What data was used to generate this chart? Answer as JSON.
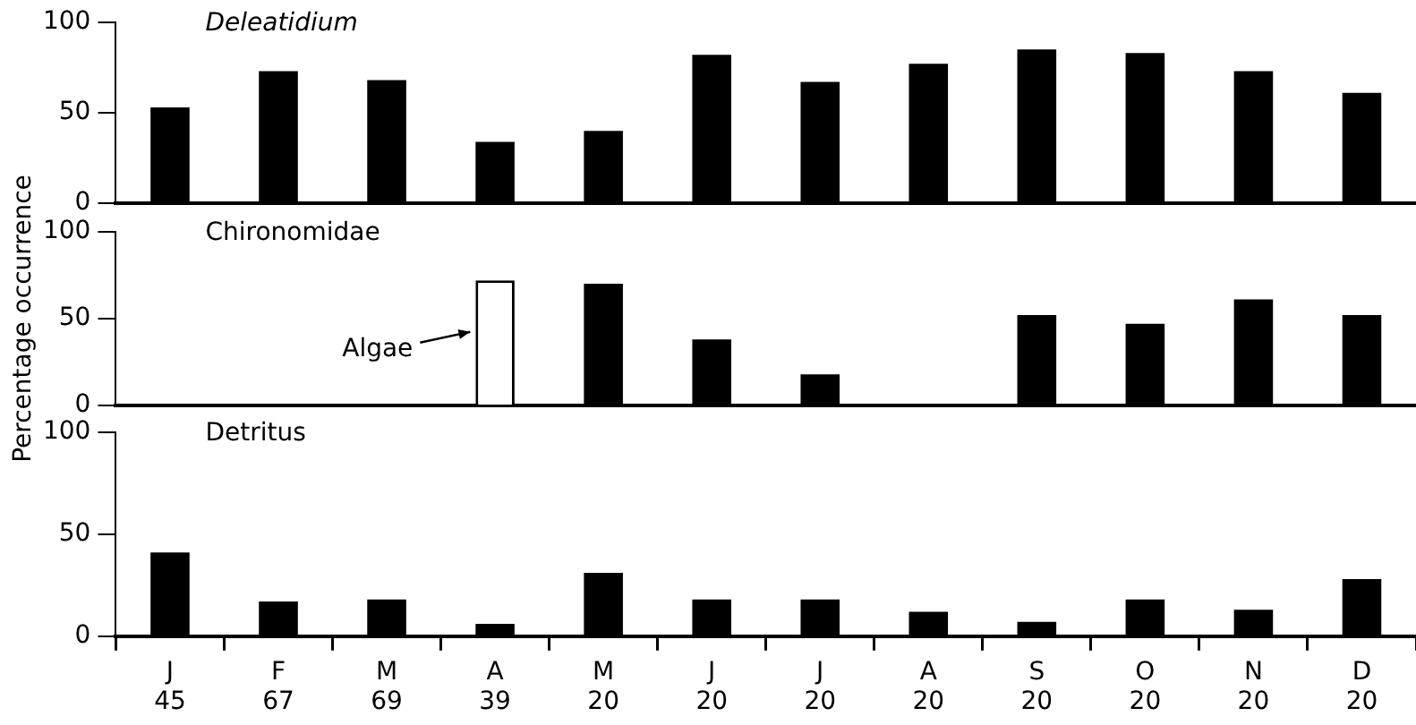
{
  "chart_data": [
    {
      "type": "bar",
      "title": "Deleatidium",
      "categories": [
        null,
        null,
        null,
        null,
        null,
        null,
        null,
        null,
        null,
        null,
        null,
        null
      ],
      "series": [
        {
          "color": "#000000",
          "values": [
            53,
            73,
            68,
            34,
            40,
            82,
            67,
            77,
            85,
            83,
            73,
            61
          ]
        }
      ],
      "ylim": [
        0,
        100
      ],
      "yticks": [
        0,
        50,
        100
      ],
      "tick_labels": "y"
    },
    {
      "type": "bar",
      "title": "Chironomidae",
      "ylabel": "Percentage occurrence",
      "categories": [
        null,
        null,
        null,
        null,
        null,
        null,
        null,
        null,
        null,
        null,
        null,
        null
      ],
      "series": [
        {
          "color": "#000000",
          "values": [
            null,
            null,
            null,
            null,
            70,
            38,
            18,
            null,
            52,
            47,
            61,
            52
          ]
        },
        {
          "name": "Algae",
          "color": "#ffffff",
          "values": [
            null,
            null,
            null,
            72,
            null,
            null,
            null,
            null,
            null,
            null,
            null,
            null
          ]
        }
      ],
      "ylim": [
        0,
        100
      ],
      "yticks": [
        0,
        50,
        100
      ],
      "tick_labels": "y"
    },
    {
      "type": "bar",
      "title": "Detritus",
      "categories": [
        "J\n45",
        "F\n67",
        "M\n69",
        "A\n39",
        "M\n20",
        "J\n20",
        "J\n20",
        "A\n20",
        "S\n20",
        "O\n20",
        "N\n20",
        "D\n20"
      ],
      "series": [
        {
          "color": "#000000",
          "values": [
            41,
            17,
            18,
            6,
            31,
            18,
            18,
            12,
            7,
            18,
            13,
            28
          ]
        }
      ],
      "ylim": [
        0,
        100
      ],
      "yticks": [
        0,
        50,
        100
      ]
    }
  ]
}
